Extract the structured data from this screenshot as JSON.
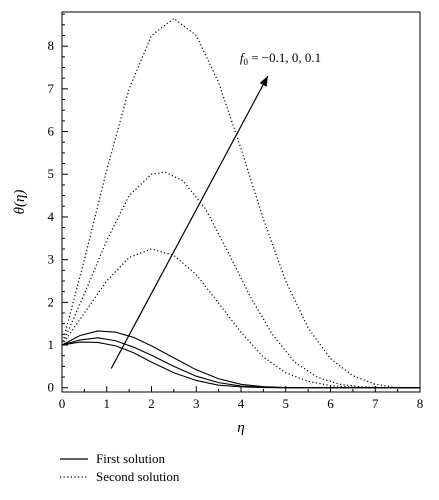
{
  "chart_data": {
    "type": "line",
    "xlabel": "η",
    "ylabel": "θ(η)",
    "xlim": [
      0,
      8
    ],
    "ylim": [
      -0.1,
      8.8
    ],
    "x_ticks": [
      "0",
      "1",
      "2",
      "3",
      "4",
      "5",
      "6",
      "7",
      "8"
    ],
    "y_ticks": [
      "0",
      "1",
      "2",
      "3",
      "4",
      "5",
      "6",
      "7",
      "8"
    ],
    "grid": false,
    "legend_position": "below-left",
    "legend": [
      {
        "label": "First solution",
        "style": "solid"
      },
      {
        "label": "Second solution",
        "style": "dotted"
      }
    ],
    "annotation": {
      "text_italic": "f",
      "text_sub": "0",
      "text_rest": " = −0.1, 0, 0.1",
      "arrow_from": [
        1.1,
        0.45
      ],
      "arrow_to": [
        4.6,
        7.3
      ]
    },
    "series": [
      {
        "style": "solid",
        "points": [
          [
            0,
            1.0
          ],
          [
            0.4,
            1.07
          ],
          [
            0.8,
            1.06
          ],
          [
            1.2,
            0.98
          ],
          [
            1.6,
            0.82
          ],
          [
            2.0,
            0.6
          ],
          [
            2.5,
            0.35
          ],
          [
            3.0,
            0.17
          ],
          [
            3.5,
            0.06
          ],
          [
            4.0,
            0.02
          ],
          [
            4.5,
            0.005
          ],
          [
            5.0,
            0.0
          ],
          [
            8.0,
            0.0
          ]
        ]
      },
      {
        "style": "solid",
        "points": [
          [
            0,
            1.0
          ],
          [
            0.4,
            1.12
          ],
          [
            0.8,
            1.17
          ],
          [
            1.2,
            1.1
          ],
          [
            1.6,
            0.95
          ],
          [
            2.0,
            0.76
          ],
          [
            2.5,
            0.5
          ],
          [
            3.0,
            0.27
          ],
          [
            3.5,
            0.12
          ],
          [
            4.0,
            0.04
          ],
          [
            4.5,
            0.01
          ],
          [
            5.0,
            0.0
          ],
          [
            8.0,
            0.0
          ]
        ]
      },
      {
        "style": "solid",
        "points": [
          [
            0,
            1.0
          ],
          [
            0.4,
            1.22
          ],
          [
            0.8,
            1.33
          ],
          [
            1.2,
            1.3
          ],
          [
            1.6,
            1.18
          ],
          [
            2.0,
            0.98
          ],
          [
            2.5,
            0.7
          ],
          [
            3.0,
            0.42
          ],
          [
            3.5,
            0.21
          ],
          [
            4.0,
            0.08
          ],
          [
            4.5,
            0.025
          ],
          [
            5.0,
            0.005
          ],
          [
            5.5,
            0.0
          ],
          [
            8.0,
            0.0
          ]
        ]
      },
      {
        "style": "dotted",
        "points": [
          [
            0,
            1.0
          ],
          [
            0.5,
            1.75
          ],
          [
            1.0,
            2.5
          ],
          [
            1.5,
            3.05
          ],
          [
            2.0,
            3.25
          ],
          [
            2.5,
            3.1
          ],
          [
            3.0,
            2.65
          ],
          [
            3.5,
            1.98
          ],
          [
            4.0,
            1.3
          ],
          [
            4.5,
            0.72
          ],
          [
            5.0,
            0.35
          ],
          [
            5.5,
            0.15
          ],
          [
            6.0,
            0.05
          ],
          [
            6.5,
            0.01
          ],
          [
            7.0,
            0.0
          ],
          [
            8.0,
            0.0
          ]
        ]
      },
      {
        "style": "dotted",
        "points": [
          [
            0,
            1.0
          ],
          [
            0.5,
            2.2
          ],
          [
            1.0,
            3.45
          ],
          [
            1.5,
            4.5
          ],
          [
            2.0,
            5.0
          ],
          [
            2.3,
            5.05
          ],
          [
            2.7,
            4.85
          ],
          [
            3.2,
            4.2
          ],
          [
            3.7,
            3.2
          ],
          [
            4.2,
            2.15
          ],
          [
            4.7,
            1.25
          ],
          [
            5.2,
            0.6
          ],
          [
            5.7,
            0.25
          ],
          [
            6.2,
            0.08
          ],
          [
            6.7,
            0.02
          ],
          [
            7.2,
            0.0
          ],
          [
            8.0,
            0.0
          ]
        ]
      },
      {
        "style": "dotted",
        "points": [
          [
            0,
            1.0
          ],
          [
            0.5,
            3.0
          ],
          [
            1.0,
            5.1
          ],
          [
            1.5,
            7.0
          ],
          [
            2.0,
            8.25
          ],
          [
            2.5,
            8.65
          ],
          [
            3.0,
            8.25
          ],
          [
            3.5,
            7.15
          ],
          [
            4.0,
            5.6
          ],
          [
            4.5,
            3.95
          ],
          [
            5.0,
            2.5
          ],
          [
            5.5,
            1.4
          ],
          [
            6.0,
            0.68
          ],
          [
            6.5,
            0.28
          ],
          [
            7.0,
            0.08
          ],
          [
            7.5,
            0.0
          ],
          [
            8.0,
            0.0
          ]
        ]
      }
    ]
  }
}
